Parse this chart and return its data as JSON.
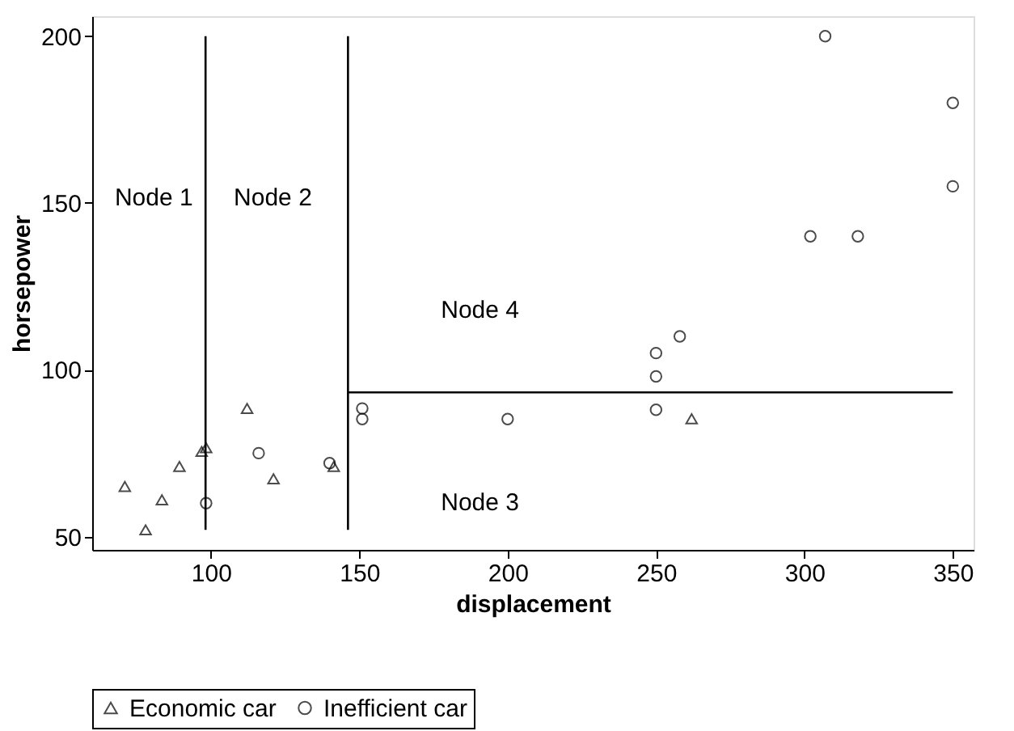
{
  "chart_data": {
    "type": "scatter",
    "xlabel": "displacement",
    "ylabel": "horsepower",
    "xlim": [
      60,
      357
    ],
    "ylim": [
      46,
      206
    ],
    "xticks": [
      100,
      150,
      200,
      250,
      300,
      350
    ],
    "yticks": [
      50,
      100,
      150,
      200
    ],
    "grid": false,
    "legend": "bottom",
    "series": [
      {
        "name": "Economic car",
        "color": "#000000",
        "marker": "triangle",
        "x": [
          71,
          78,
          83.5,
          89.4,
          96.9,
          98.4,
          112.2,
          121.1,
          141.4,
          262
        ],
        "values": [
          65,
          52,
          61,
          71,
          75.5,
          76.6,
          88.4,
          67.3,
          71,
          85.3
        ]
      },
      {
        "name": "Inefficient car",
        "color": "#000000",
        "marker": "circle",
        "x": [
          98.4,
          116.1,
          140,
          151,
          151,
          200,
          250,
          250,
          250,
          258,
          302,
          318,
          307,
          350,
          350
        ],
        "values": [
          60,
          75,
          72,
          88.4,
          85.2,
          85.2,
          88,
          98,
          105,
          110,
          140,
          140,
          200,
          180,
          155
        ]
      },
      {
        "type": "line",
        "color": "#000000",
        "line_style": "solid",
        "x": [
          98.2,
          98.2
        ],
        "values": [
          52,
          200
        ]
      },
      {
        "type": "line",
        "color": "#000000",
        "line_style": "solid",
        "x": [
          146.2,
          146.2
        ],
        "values": [
          52,
          200
        ]
      },
      {
        "type": "line",
        "color": "#000000",
        "line_style": "solid",
        "x": [
          146.2,
          350
        ],
        "values": [
          93.2,
          93.2
        ]
      }
    ],
    "annotations": [
      "Node 1",
      "Node 2",
      "Node 4",
      "Node 3"
    ]
  }
}
